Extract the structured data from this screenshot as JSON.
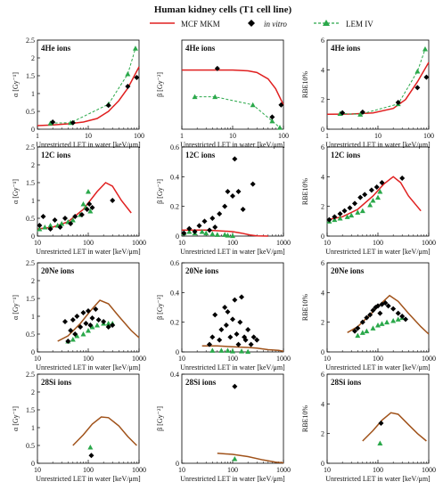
{
  "figure_title": "Human kidney cells (T1 cell line)",
  "legend": [
    {
      "name": "MCF MKM",
      "marker": "line",
      "color": "#e02020"
    },
    {
      "name": "in vitro",
      "marker": "diamond",
      "color": "#000000"
    },
    {
      "name": "LEM IV",
      "marker": "triangle-dashed",
      "color": "#2aa84a"
    }
  ],
  "xlabel": "Unrestricted LET in water [keV/μm]",
  "colors": {
    "mkm_red": "#e02020",
    "mkm_brown": "#a0521a",
    "invitro": "#000000",
    "lem": "#2aa84a"
  },
  "chart_data": [
    {
      "type": "scatter",
      "ion": "4He ions",
      "quantity": "alpha",
      "ylabel": "α [Gy⁻¹]",
      "xscale": "log",
      "xlim": [
        1,
        100
      ],
      "ylim": [
        0,
        2.5
      ],
      "yticks": [
        "0",
        "0.5",
        "1",
        "1.5",
        "2",
        "2.5"
      ],
      "xticks": [
        "1",
        "10",
        "100"
      ],
      "mkm": {
        "x": [
          1,
          2,
          4,
          8,
          15,
          25,
          40,
          60,
          100
        ],
        "y": [
          0.1,
          0.12,
          0.15,
          0.2,
          0.3,
          0.5,
          0.8,
          1.15,
          1.75
        ]
      },
      "invitro": {
        "x": [
          2,
          5,
          25,
          60,
          90
        ],
        "y": [
          0.2,
          0.18,
          0.67,
          1.2,
          1.45
        ]
      },
      "lem": {
        "x": [
          1.8,
          4.5,
          25,
          60,
          85
        ],
        "y": [
          0.17,
          0.18,
          0.7,
          1.55,
          2.27
        ]
      }
    },
    {
      "type": "scatter",
      "ion": "4He ions",
      "quantity": "beta",
      "ylabel": "β [Gy⁻²]",
      "xscale": "log",
      "xlim": [
        1,
        100
      ],
      "ylim": [
        0,
        0.11
      ],
      "yticks": [],
      "xticks": [
        "1",
        "10",
        "100"
      ],
      "mkm": {
        "x": [
          1,
          2,
          5,
          10,
          20,
          30,
          50,
          70,
          100
        ],
        "y": [
          0.073,
          0.073,
          0.073,
          0.073,
          0.072,
          0.07,
          0.062,
          0.05,
          0.03
        ]
      },
      "invitro": {
        "x": [
          5,
          60,
          90
        ],
        "y": [
          0.075,
          0.015,
          0.03
        ]
      },
      "lem": {
        "x": [
          1.8,
          4.5,
          25,
          60,
          85
        ],
        "y": [
          0.04,
          0.04,
          0.03,
          0.01,
          0.002
        ]
      }
    },
    {
      "type": "scatter",
      "ion": "4He ions",
      "quantity": "RBE",
      "ylabel": "RBE10%",
      "xscale": "log",
      "xlim": [
        1,
        100
      ],
      "ylim": [
        0,
        6
      ],
      "yticks": [
        "0",
        "2",
        "4",
        "6"
      ],
      "xticks": [
        "1",
        "10",
        "100"
      ],
      "mkm": {
        "x": [
          1,
          3,
          8,
          20,
          35,
          60,
          100
        ],
        "y": [
          1,
          1.02,
          1.1,
          1.4,
          2,
          3.2,
          4.5
        ]
      },
      "invitro": {
        "x": [
          2,
          5,
          25,
          60,
          90
        ],
        "y": [
          1.1,
          1.15,
          1.8,
          2.8,
          3.5
        ]
      },
      "lem": {
        "x": [
          1.8,
          4.5,
          25,
          60,
          85
        ],
        "y": [
          1.05,
          1.0,
          1.7,
          3.9,
          5.4
        ]
      }
    },
    {
      "type": "scatter",
      "ion": "12C ions",
      "quantity": "alpha",
      "ylabel": "α [Gy⁻¹]",
      "xscale": "log",
      "xlim": [
        10,
        1000
      ],
      "ylim": [
        0,
        2.5
      ],
      "yticks": [
        "0",
        "0.5",
        "1",
        "1.5",
        "2",
        "2.5"
      ],
      "xticks": [
        "10",
        "100",
        "1000"
      ],
      "mkm": {
        "x": [
          10,
          20,
          40,
          80,
          150,
          220,
          300,
          450,
          700
        ],
        "y": [
          0.2,
          0.25,
          0.4,
          0.75,
          1.25,
          1.5,
          1.4,
          1.0,
          0.65
        ]
      },
      "invitro": {
        "x": [
          11,
          13,
          18,
          22,
          28,
          35,
          45,
          55,
          75,
          95,
          105,
          120,
          300
        ],
        "y": [
          0.3,
          0.55,
          0.2,
          0.45,
          0.25,
          0.5,
          0.35,
          0.55,
          0.6,
          0.75,
          0.9,
          0.8,
          1.0
        ]
      },
      "lem": {
        "x": [
          11,
          14,
          18,
          25,
          30,
          40,
          50,
          70,
          80,
          90,
          100,
          110
        ],
        "y": [
          0.2,
          0.25,
          0.3,
          0.3,
          0.35,
          0.4,
          0.45,
          0.6,
          0.9,
          0.8,
          1.25,
          0.7
        ]
      }
    },
    {
      "type": "scatter",
      "ion": "12C ions",
      "quantity": "beta",
      "ylabel": "β [Gy⁻²]",
      "xscale": "log",
      "xlim": [
        10,
        1000
      ],
      "ylim": [
        0,
        0.6
      ],
      "yticks": [
        "0",
        "0.2",
        "0.4",
        "0.6"
      ],
      "xticks": [
        "10",
        "100",
        "1000"
      ],
      "mkm": {
        "x": [
          10,
          30,
          60,
          100,
          150,
          220,
          300,
          500
        ],
        "y": [
          0.04,
          0.04,
          0.035,
          0.03,
          0.02,
          0.008,
          0.002,
          0.0
        ]
      },
      "invitro": {
        "x": [
          11,
          14,
          18,
          22,
          28,
          35,
          40,
          45,
          55,
          70,
          80,
          100,
          110,
          130,
          160,
          250
        ],
        "y": [
          0.02,
          0.05,
          0.03,
          0.07,
          0.1,
          0.04,
          0.12,
          0.06,
          0.15,
          0.2,
          0.3,
          0.27,
          0.52,
          0.3,
          0.18,
          0.35
        ]
      },
      "lem": {
        "x": [
          11,
          14,
          18,
          25,
          30,
          40,
          50,
          70,
          80,
          100
        ],
        "y": [
          0.02,
          0.03,
          0.02,
          0.03,
          0.02,
          0.015,
          0.01,
          0.01,
          0.005,
          0.002
        ]
      }
    },
    {
      "type": "scatter",
      "ion": "12C ions",
      "quantity": "RBE",
      "ylabel": "RBE10%",
      "xscale": "log",
      "xlim": [
        10,
        1000
      ],
      "ylim": [
        0,
        6
      ],
      "yticks": [
        "0",
        "2",
        "4",
        "6"
      ],
      "xticks": [
        "10",
        "100",
        "1000"
      ],
      "mkm": {
        "x": [
          10,
          20,
          40,
          80,
          130,
          200,
          280,
          400,
          700
        ],
        "y": [
          1.1,
          1.3,
          1.8,
          2.7,
          3.5,
          4.0,
          3.6,
          2.7,
          1.7
        ]
      },
      "invitro": {
        "x": [
          11,
          14,
          18,
          22,
          28,
          35,
          45,
          55,
          75,
          95,
          120,
          300
        ],
        "y": [
          1.1,
          1.3,
          1.5,
          1.7,
          1.9,
          2.2,
          2.6,
          2.8,
          3.1,
          3.3,
          3.6,
          3.9
        ]
      },
      "lem": {
        "x": [
          11,
          14,
          18,
          25,
          30,
          40,
          50,
          70,
          80,
          100,
          110
        ],
        "y": [
          1.0,
          1.1,
          1.2,
          1.3,
          1.4,
          1.6,
          1.7,
          2.1,
          2.4,
          2.6,
          3.0
        ]
      }
    },
    {
      "type": "scatter",
      "ion": "20Ne ions",
      "quantity": "alpha",
      "ylabel": "α [Gy⁻¹]",
      "xscale": "log",
      "xlim": [
        10,
        1000
      ],
      "ylim": [
        0,
        2.5
      ],
      "yticks": [
        "0",
        "0.5",
        "1",
        "1.5",
        "2",
        "2.5"
      ],
      "xticks": [
        "10",
        "100",
        "1000"
      ],
      "mkm": {
        "x": [
          25,
          40,
          70,
          110,
          170,
          250,
          400,
          700,
          1000
        ],
        "y": [
          0.3,
          0.45,
          0.8,
          1.15,
          1.45,
          1.35,
          1.0,
          0.6,
          0.4
        ]
      },
      "invitro": {
        "x": [
          35,
          40,
          45,
          50,
          55,
          60,
          70,
          80,
          90,
          100,
          110,
          120,
          140,
          160,
          200,
          250,
          300
        ],
        "y": [
          0.85,
          0.3,
          0.6,
          0.9,
          0.5,
          1.0,
          0.7,
          1.1,
          0.8,
          1.15,
          0.75,
          0.95,
          1.2,
          0.9,
          0.85,
          0.7,
          0.75
        ]
      },
      "lem": {
        "x": [
          40,
          50,
          60,
          80,
          100,
          120,
          150,
          200,
          250,
          300
        ],
        "y": [
          0.3,
          0.35,
          0.45,
          0.5,
          0.6,
          0.7,
          0.75,
          0.8,
          0.8,
          0.8
        ]
      }
    },
    {
      "type": "scatter",
      "ion": "20Ne ions",
      "quantity": "beta",
      "ylabel": "β [Gy⁻²]",
      "xscale": "log",
      "xlim": [
        10,
        1000
      ],
      "ylim": [
        0,
        0.6
      ],
      "yticks": [
        "0",
        "0.2",
        "0.4",
        "0.6"
      ],
      "xticks": [
        "10",
        "100",
        "1000"
      ],
      "mkm": {
        "x": [
          25,
          50,
          100,
          200,
          300,
          500,
          800,
          1000
        ],
        "y": [
          0.04,
          0.04,
          0.035,
          0.03,
          0.025,
          0.015,
          0.01,
          0.005
        ]
      },
      "invitro": {
        "x": [
          35,
          40,
          45,
          55,
          60,
          70,
          75,
          80,
          90,
          100,
          110,
          120,
          130,
          140,
          150,
          170,
          180,
          200,
          230,
          260,
          300
        ],
        "y": [
          0.05,
          0.1,
          0.25,
          0.08,
          0.15,
          0.3,
          0.18,
          0.27,
          0.1,
          0.22,
          0.35,
          0.12,
          0.05,
          0.2,
          0.37,
          0.1,
          0.08,
          0.15,
          0.05,
          0.1,
          0.08
        ]
      },
      "lem": {
        "x": [
          40,
          60,
          80,
          100,
          150,
          200
        ],
        "y": [
          0.01,
          0.01,
          0.01,
          0.005,
          0.005,
          0.002
        ]
      }
    },
    {
      "type": "scatter",
      "ion": "20Ne ions",
      "quantity": "RBE",
      "ylabel": "RBE10%",
      "xscale": "log",
      "xlim": [
        10,
        1000
      ],
      "ylim": [
        0,
        6
      ],
      "yticks": [
        "0",
        "2",
        "4",
        "6"
      ],
      "xticks": [
        "10",
        "100",
        "1000"
      ],
      "mkm": {
        "x": [
          25,
          40,
          70,
          110,
          170,
          250,
          400,
          700,
          1000
        ],
        "y": [
          1.3,
          1.7,
          2.5,
          3.2,
          3.8,
          3.4,
          2.6,
          1.7,
          1.2
        ]
      },
      "invitro": {
        "x": [
          35,
          40,
          50,
          60,
          70,
          80,
          90,
          100,
          110,
          120,
          140,
          160,
          200,
          250,
          300,
          350
        ],
        "y": [
          1.4,
          1.6,
          2.0,
          2.3,
          2.5,
          2.8,
          3.0,
          3.1,
          2.6,
          3.2,
          3.3,
          3.1,
          2.9,
          2.6,
          2.4,
          2.2
        ]
      },
      "lem": {
        "x": [
          40,
          50,
          60,
          80,
          100,
          120,
          150,
          200,
          250,
          300
        ],
        "y": [
          1.1,
          1.3,
          1.4,
          1.6,
          1.8,
          1.9,
          2.0,
          2.1,
          2.2,
          2.3
        ]
      }
    },
    {
      "type": "scatter",
      "ion": "28Si ions",
      "quantity": "alpha",
      "ylabel": "α [Gy⁻¹]",
      "xscale": "log",
      "xlim": [
        10,
        1000
      ],
      "ylim": [
        0,
        2.5
      ],
      "yticks": [
        "0",
        "0.5",
        "1",
        "1.5",
        "2",
        "2.5"
      ],
      "xticks": [
        "10",
        "100",
        "1000"
      ],
      "mkm": {
        "x": [
          50,
          80,
          120,
          180,
          250,
          400,
          600,
          900
        ],
        "y": [
          0.5,
          0.8,
          1.1,
          1.3,
          1.28,
          1.05,
          0.75,
          0.5
        ]
      },
      "invitro": {
        "x": [
          115
        ],
        "y": [
          0.22
        ]
      },
      "lem": {
        "x": [
          110
        ],
        "y": [
          0.45
        ]
      }
    },
    {
      "type": "scatter",
      "ion": "28Si ions",
      "quantity": "beta",
      "ylabel": "β [Gy⁻²]",
      "xscale": "log",
      "xlim": [
        10,
        1000
      ],
      "ylim": [
        0,
        0.4
      ],
      "yticks": [
        "0",
        "0.4"
      ],
      "xticks": [
        "10",
        "100",
        "1000"
      ],
      "mkm": {
        "x": [
          50,
          100,
          200,
          400,
          700,
          1000
        ],
        "y": [
          0.045,
          0.04,
          0.03,
          0.015,
          0.005,
          0.002
        ]
      },
      "invitro": {
        "x": [
          110
        ],
        "y": [
          0.345
        ]
      },
      "lem": {
        "x": [
          110
        ],
        "y": [
          0.02
        ]
      }
    },
    {
      "type": "scatter",
      "ion": "28Si ions",
      "quantity": "RBE",
      "ylabel": "RBE10%",
      "xscale": "log",
      "xlim": [
        10,
        1000
      ],
      "ylim": [
        0,
        6
      ],
      "yticks": [
        "0",
        "2",
        "4",
        "6"
      ],
      "xticks": [
        "10",
        "100",
        "1000"
      ],
      "mkm": {
        "x": [
          50,
          80,
          120,
          180,
          250,
          400,
          600,
          900
        ],
        "y": [
          1.5,
          2.2,
          2.9,
          3.4,
          3.3,
          2.6,
          2.0,
          1.5
        ]
      },
      "invitro": {
        "x": [
          115
        ],
        "y": [
          2.7
        ]
      },
      "lem": {
        "x": [
          110
        ],
        "y": [
          1.35
        ]
      }
    }
  ]
}
